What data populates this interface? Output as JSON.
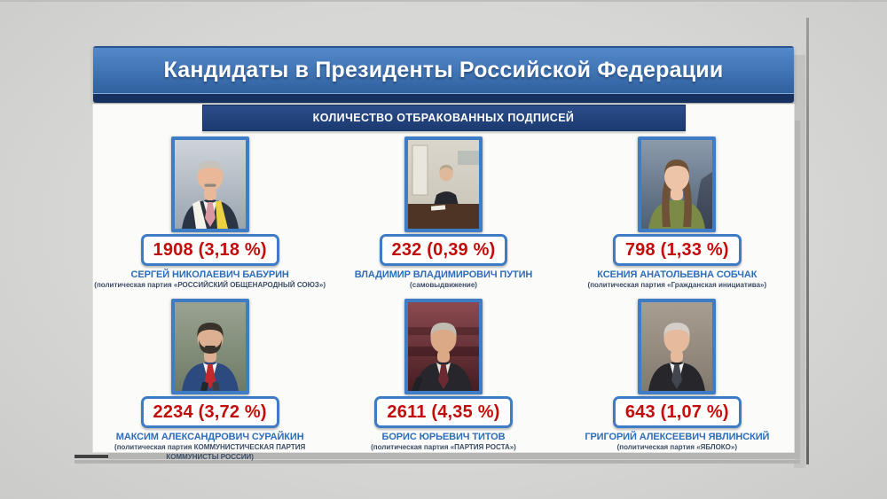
{
  "header": {
    "title": "Кандидаты в Президенты Российской Федерации"
  },
  "subtitle_bar": {
    "label": "КОЛИЧЕСТВО ОТБРАКОВАННЫХ ПОДПИСЕЙ"
  },
  "colors": {
    "background": "#d3d3d1",
    "header_blue_top": "#5389ca",
    "header_blue_bottom": "#30619f",
    "header_navy_strip": "#16315f",
    "subtitle_navy": "#1e3d77",
    "card_white": "#fbfbf9",
    "frame_blue": "#3f7cc6",
    "value_red": "#c20d0d",
    "name_blue": "#2e6db8",
    "party_dark": "#3c4d66"
  },
  "candidates": [
    {
      "name": "СЕРГЕЙ НИКОЛАЕВИЧ БАБУРИН",
      "party": "(политическая партия «РОССИЙСКИЙ ОБЩЕНАРОДНЫЙ СОЮЗ»)",
      "rejected_label": "1908 (3,18 %)",
      "photo": {
        "alt": "baburin-portrait",
        "scene": "suit",
        "bg1": "#cfd4da",
        "bg2": "#9aa5b0",
        "hair": "#c6c3bd",
        "skin": "#e8b899",
        "suit": "#2b3442",
        "shirt": "#f3efe7",
        "tie": "#d897a1",
        "scarf": "#ecd23f",
        "scarf2": "#f5f2e8",
        "mustache": "#8f877b"
      }
    },
    {
      "name": "ВЛАДИМИР ВЛАДИМИРОВИЧ ПУТИН",
      "party": "(самовыдвижение)",
      "rejected_label": "232 (0,39 %)",
      "photo": {
        "alt": "putin-office",
        "scene": "office",
        "bg1": "#dad6cc",
        "bg2": "#c8c3b6",
        "hair": "#b3a78c",
        "skin": "#e0b89c",
        "suit": "#24272e",
        "desk": "#4e3424",
        "door": "#e9e6dd"
      }
    },
    {
      "name": "КСЕНИЯ АНАТОЛЬЕВНА СОБЧАК",
      "party": "(политическая партия «Гражданская инициатива»)",
      "rejected_label": "798 (1,33 %)",
      "photo": {
        "alt": "sobchak-portrait",
        "scene": "woman",
        "bg1": "#8b9aab",
        "bg2": "#4f5f74",
        "hair": "#6f5137",
        "skin": "#eec4a9",
        "suit": "#7b8a44"
      }
    },
    {
      "name": "МАКСИМ АЛЕКСАНДРОВИЧ СУРАЙКИН",
      "party": "(политическая партия КОММУНИСТИЧЕСКАЯ ПАРТИЯ КОММУНИСТЫ РОССИИ)",
      "rejected_label": "2234 (3,72 %)",
      "photo": {
        "alt": "surajkin-portrait",
        "scene": "beard",
        "bg1": "#9aa391",
        "bg2": "#6e7a67",
        "hair": "#38322b",
        "skin": "#ddb091",
        "suit": "#2d4a7e",
        "shirt": "#f6f5f1",
        "tie": "#c2292e",
        "mic": "center"
      }
    },
    {
      "name": "БОРИС ЮРЬЕВИЧ ТИТОВ",
      "party": "(политическая партия «ПАРТИЯ РОСТА»)",
      "rejected_label": "2611 (4,35 %)",
      "photo": {
        "alt": "titov-portrait",
        "scene": "suit",
        "bg1": "#8c4a50",
        "bg2": "#451d22",
        "hair": "#c0bcb2",
        "skin": "#dba986",
        "suit": "#26262c",
        "shirt": "#e8e4da",
        "tie": "#6b2a31",
        "mic": "left",
        "chairs": true
      }
    },
    {
      "name": "ГРИГОРИЙ АЛЕКСЕЕВИЧ ЯВЛИНСКИЙ",
      "party": "(политическая партия «ЯБЛОКО»)",
      "rejected_label": "643 (1,07 %)",
      "photo": {
        "alt": "yavlinsky-portrait",
        "scene": "suit",
        "bg1": "#a89d91",
        "bg2": "#837a6f",
        "hair": "#d3cfc8",
        "skin": "#e6ba9d",
        "suit": "#26262b",
        "shirt": "#f2efe9",
        "tie": "#41454e"
      }
    }
  ],
  "chart_data": {
    "type": "table",
    "title": "Кандидаты в Президенты Российской Федерации",
    "subtitle": "КОЛИЧЕСТВО ОТБРАКОВАННЫХ ПОДПИСЕЙ",
    "categories": [
      "СЕРГЕЙ НИКОЛАЕВИЧ БАБУРИН",
      "ВЛАДИМИР ВЛАДИМИРОВИЧ ПУТИН",
      "КСЕНИЯ АНАТОЛЬЕВНА СОБЧАК",
      "МАКСИМ АЛЕКСАНДРОВИЧ СУРАЙКИН",
      "БОРИС ЮРЬЕВИЧ ТИТОВ",
      "ГРИГОРИЙ АЛЕКСЕЕВИЧ ЯВЛИНСКИЙ"
    ],
    "values": [
      1908,
      232,
      798,
      2234,
      2611,
      643
    ],
    "percents": [
      3.18,
      0.39,
      1.33,
      3.72,
      4.35,
      1.07
    ],
    "value_labels": [
      "1908 (3,18 %)",
      "232 (0,39 %)",
      "798 (1,33 %)",
      "2234 (3,72 %)",
      "2611 (4,35 %)",
      "643 (1,07 %)"
    ]
  }
}
